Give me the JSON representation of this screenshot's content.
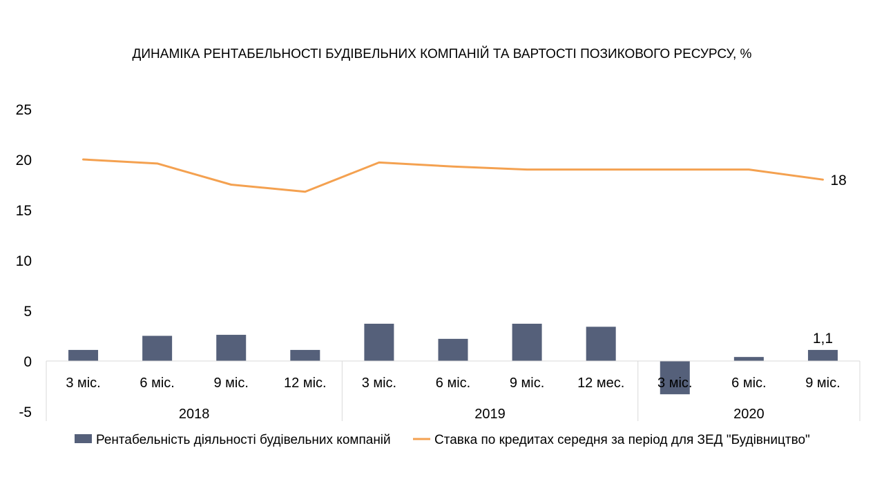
{
  "chart_data": {
    "type": "bar",
    "title": "ДИНАМІКА РЕНТАБЕЛЬНОСТІ БУДІВЕЛЬНИХ КОМПАНІЙ ТА ВАРТОСТІ ПОЗИКОВОГО РЕСУРСУ, %",
    "categories": [
      "3 міс.",
      "6 міс.",
      "9 міс.",
      "12 міс.",
      "3 міс.",
      "6 міс.",
      "9 міс.",
      "12 мес.",
      "3 міс.",
      "6 міс.",
      "9 міс."
    ],
    "groups": [
      {
        "label": "2018",
        "count": 4
      },
      {
        "label": "2019",
        "count": 4
      },
      {
        "label": "2020",
        "count": 3
      }
    ],
    "ylim": [
      -5,
      25
    ],
    "yticks": [
      "-5",
      "0",
      "5",
      "10",
      "15",
      "20",
      "25"
    ],
    "grid": false,
    "legend_position": "bottom",
    "series": [
      {
        "name": "Рентабельність діяльності будівельних компаній",
        "kind": "bar",
        "color": "#55607a",
        "values": [
          1.1,
          2.5,
          2.6,
          1.1,
          3.7,
          2.2,
          3.7,
          3.4,
          -3.3,
          0.4,
          1.1
        ],
        "last_label": "1,1"
      },
      {
        "name": "Ставка по кредитах  середня за період для ЗЕД \"Будівництво\"",
        "kind": "line",
        "color": "#f4a150",
        "values": [
          20.0,
          19.6,
          17.5,
          16.8,
          19.7,
          19.3,
          19.0,
          19.0,
          19.0,
          19.0,
          18.0
        ],
        "last_label": "18"
      }
    ]
  }
}
